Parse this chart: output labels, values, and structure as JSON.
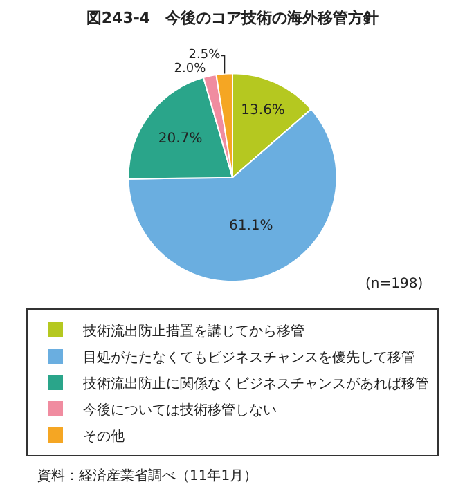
{
  "chart_data": {
    "type": "pie",
    "title": "図243-4　今後のコア技術の海外移管方針",
    "categories": [
      "技術流出防止措置を講じてから移管",
      "目処がたたなくてもビジネスチャンスを優先して移管",
      "技術流出防止に関係なくビジネスチャンスがあれば移管",
      "今後については技術移管しない",
      "その他"
    ],
    "values": [
      13.6,
      61.1,
      20.7,
      2.0,
      2.5
    ],
    "value_labels": [
      "13.6%",
      "61.1%",
      "20.7%",
      "2.0%",
      "2.5%"
    ],
    "colors": [
      "#b5c820",
      "#6aaee0",
      "#2aa58a",
      "#f08ca0",
      "#f5a623"
    ],
    "legend": "bottom",
    "annotations": [
      "(n=198)",
      "資料：経済産業省調べ（11年1月）"
    ]
  }
}
